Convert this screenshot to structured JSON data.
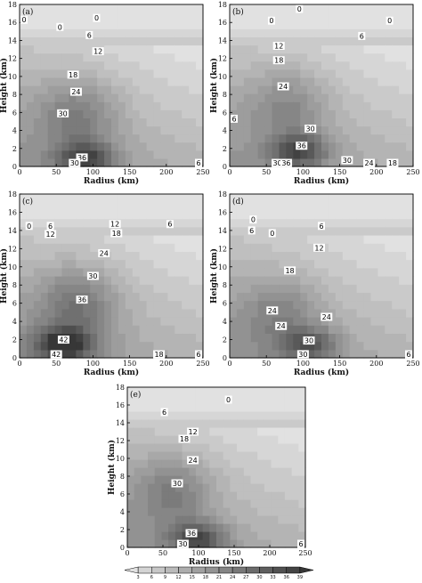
{
  "chart_data": [
    {
      "panel": "(a)",
      "type": "heatmap",
      "xlabel": "Radius (km)",
      "ylabel": "Height (km)",
      "xlim": [
        0,
        250
      ],
      "ylim": [
        0,
        18
      ],
      "x_ticks": [
        "0",
        "50",
        "100",
        "150",
        "200",
        "250"
      ],
      "y_ticks": [
        "0",
        "2",
        "4",
        "6",
        "8",
        "10",
        "12",
        "14",
        "16",
        "18"
      ],
      "core": {
        "r": 90,
        "z": 1.0,
        "peak": 38
      },
      "mid_core": {
        "r": 80,
        "z": 6.0,
        "peak": 31
      },
      "contour_labels": [
        {
          "text": "0",
          "r": 105,
          "z": 16.5
        },
        {
          "text": "0",
          "r": 55,
          "z": 15.5
        },
        {
          "text": "0",
          "r": 0,
          "z": 16.3
        },
        {
          "text": "6",
          "r": 95,
          "z": 14.6
        },
        {
          "text": "12",
          "r": 107,
          "z": 12.8
        },
        {
          "text": "18",
          "r": 73,
          "z": 10.2
        },
        {
          "text": "24",
          "r": 77,
          "z": 8.3
        },
        {
          "text": "30",
          "r": 59,
          "z": 5.9
        },
        {
          "text": "36",
          "r": 85,
          "z": 1.0
        },
        {
          "text": "30",
          "r": 75,
          "z": 0.1
        },
        {
          "text": "6",
          "r": 250,
          "z": 0.1
        }
      ]
    },
    {
      "panel": "(b)",
      "type": "heatmap",
      "xlabel": "Radius (km)",
      "ylabel": "Height (km)",
      "xlim": [
        0,
        250
      ],
      "ylim": [
        0,
        18
      ],
      "x_ticks": [
        "0",
        "50",
        "100",
        "150",
        "200",
        "250"
      ],
      "y_ticks": [
        "0",
        "2",
        "4",
        "6",
        "8",
        "10",
        "12",
        "14",
        "16",
        "18"
      ],
      "core": {
        "r": 95,
        "z": 1.8,
        "peak": 38
      },
      "mid_core": {
        "r": 80,
        "z": 7.0,
        "peak": 27
      },
      "contour_labels": [
        {
          "text": "0",
          "r": 95,
          "z": 18
        },
        {
          "text": "0",
          "r": 218,
          "z": 16.2
        },
        {
          "text": "0",
          "r": 57,
          "z": 16.2
        },
        {
          "text": "6",
          "r": 180,
          "z": 14.5
        },
        {
          "text": "12",
          "r": 67,
          "z": 13.4
        },
        {
          "text": "18",
          "r": 67,
          "z": 11.8
        },
        {
          "text": "24",
          "r": 73,
          "z": 8.9
        },
        {
          "text": "6",
          "r": 2,
          "z": 5.3
        },
        {
          "text": "30",
          "r": 110,
          "z": 4.2
        },
        {
          "text": "36",
          "r": 98,
          "z": 2.3
        },
        {
          "text": "30",
          "r": 160,
          "z": 0.7
        },
        {
          "text": "30",
          "r": 65,
          "z": 0.1
        },
        {
          "text": "36",
          "r": 77,
          "z": 0.1
        },
        {
          "text": "24",
          "r": 190,
          "z": 0.2
        },
        {
          "text": "18",
          "r": 222,
          "z": 0.1
        }
      ]
    },
    {
      "panel": "(c)",
      "type": "heatmap",
      "xlabel": "Radius (km)",
      "ylabel": "Height (km)",
      "xlim": [
        0,
        250
      ],
      "ylim": [
        0,
        18
      ],
      "x_ticks": [
        "0",
        "50",
        "100",
        "150",
        "200",
        "250"
      ],
      "y_ticks": [
        "0",
        "2",
        "4",
        "6",
        "8",
        "10",
        "12",
        "14",
        "16",
        "18"
      ],
      "core": {
        "r": 60,
        "z": 1.5,
        "peak": 45
      },
      "mid_core": {
        "r": 80,
        "z": 6.0,
        "peak": 37
      },
      "contour_labels": [
        {
          "text": "6",
          "r": 42,
          "z": 14.5
        },
        {
          "text": "12",
          "r": 42,
          "z": 13.6
        },
        {
          "text": "0",
          "r": 13,
          "z": 14.5
        },
        {
          "text": "12",
          "r": 130,
          "z": 14.7
        },
        {
          "text": "18",
          "r": 132,
          "z": 13.7
        },
        {
          "text": "6",
          "r": 205,
          "z": 14.7
        },
        {
          "text": "24",
          "r": 115,
          "z": 11.5
        },
        {
          "text": "30",
          "r": 100,
          "z": 9.0
        },
        {
          "text": "36",
          "r": 85,
          "z": 6.4
        },
        {
          "text": "42",
          "r": 60,
          "z": 2.0
        },
        {
          "text": "42",
          "r": 50,
          "z": 0.1
        },
        {
          "text": "18",
          "r": 190,
          "z": 0.3
        },
        {
          "text": "6",
          "r": 250,
          "z": 0.1
        }
      ]
    },
    {
      "panel": "(d)",
      "type": "heatmap",
      "xlabel": "Radius (km)",
      "ylabel": "Height (km)",
      "xlim": [
        0,
        250
      ],
      "ylim": [
        0,
        18
      ],
      "x_ticks": [
        "0",
        "50",
        "100",
        "150",
        "200",
        "250"
      ],
      "y_ticks": [
        "0",
        "2",
        "4",
        "6",
        "8",
        "10",
        "12",
        "14",
        "16",
        "18"
      ],
      "core": {
        "r": 110,
        "z": 1.5,
        "peak": 33
      },
      "mid_core": {
        "r": 70,
        "z": 5.0,
        "peak": 26
      },
      "contour_labels": [
        {
          "text": "0",
          "r": 32,
          "z": 15.2
        },
        {
          "text": "6",
          "r": 30,
          "z": 14.0
        },
        {
          "text": "0",
          "r": 58,
          "z": 13.7
        },
        {
          "text": "6",
          "r": 125,
          "z": 14.5
        },
        {
          "text": "12",
          "r": 122,
          "z": 12.1
        },
        {
          "text": "18",
          "r": 82,
          "z": 9.6
        },
        {
          "text": "24",
          "r": 58,
          "z": 5.2
        },
        {
          "text": "24",
          "r": 70,
          "z": 3.5
        },
        {
          "text": "24",
          "r": 132,
          "z": 4.5
        },
        {
          "text": "30",
          "r": 108,
          "z": 1.9
        },
        {
          "text": "30",
          "r": 100,
          "z": 0.4
        },
        {
          "text": "6",
          "r": 250,
          "z": 0.1
        }
      ]
    },
    {
      "panel": "(e)",
      "type": "heatmap",
      "xlabel": "Radius (km)",
      "ylabel": "Height (km)",
      "xlim": [
        0,
        250
      ],
      "ylim": [
        0,
        18
      ],
      "x_ticks": [
        "0",
        "50",
        "100",
        "150",
        "200",
        "250"
      ],
      "y_ticks": [
        "0",
        "2",
        "4",
        "6",
        "8",
        "10",
        "12",
        "14",
        "16",
        "18"
      ],
      "core": {
        "r": 100,
        "z": 1.0,
        "peak": 38
      },
      "mid_core": {
        "r": 65,
        "z": 6.5,
        "peak": 31
      },
      "contour_labels": [
        {
          "text": "0",
          "r": 142,
          "z": 16.6
        },
        {
          "text": "6",
          "r": 52,
          "z": 15.2
        },
        {
          "text": "12",
          "r": 92,
          "z": 13.0
        },
        {
          "text": "18",
          "r": 80,
          "z": 12.2
        },
        {
          "text": "24",
          "r": 92,
          "z": 9.8
        },
        {
          "text": "30",
          "r": 70,
          "z": 7.2
        },
        {
          "text": "36",
          "r": 90,
          "z": 1.6
        },
        {
          "text": "30",
          "r": 78,
          "z": 0.2
        },
        {
          "text": "6",
          "r": 250,
          "z": 0.1
        }
      ]
    }
  ],
  "colorbar": {
    "ticks": [
      "3",
      "6",
      "9",
      "12",
      "15",
      "18",
      "21",
      "24",
      "27",
      "30",
      "33",
      "36",
      "39"
    ],
    "levels": [
      3,
      6,
      9,
      12,
      15,
      18,
      21,
      24,
      27,
      30,
      33,
      36,
      39
    ]
  },
  "colors": {
    "lightest": "#dcdcdc",
    "darkest": "#3c3c3c",
    "contour": "#111111"
  }
}
